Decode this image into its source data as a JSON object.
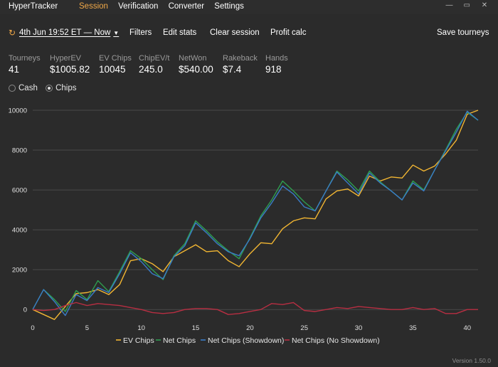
{
  "app": {
    "title": "HyperTracker"
  },
  "nav": {
    "items": [
      "Session",
      "Verification",
      "Converter",
      "Settings"
    ],
    "active": "Session"
  },
  "window_controls": {
    "minimize": "—",
    "maximize": "▭",
    "close": "✕"
  },
  "toolbar": {
    "session_range": "4th Jun 19:52 ET — Now",
    "filters": "Filters",
    "edit_stats": "Edit stats",
    "clear_session": "Clear session",
    "profit_calc": "Profit calc",
    "save_tourneys": "Save tourneys"
  },
  "stats": [
    {
      "label": "Tourneys",
      "value": "41"
    },
    {
      "label": "HyperEV",
      "value": "$1005.82"
    },
    {
      "label": "EV Chips",
      "value": "10045"
    },
    {
      "label": "ChipEV/t",
      "value": "245.0"
    },
    {
      "label": "NetWon",
      "value": "$540.00"
    },
    {
      "label": "Rakeback",
      "value": "$7.4"
    },
    {
      "label": "Hands",
      "value": "918"
    }
  ],
  "modes": {
    "options": [
      "Cash",
      "Chips"
    ],
    "selected": "Chips"
  },
  "chart_data": {
    "type": "line",
    "xlim": [
      0,
      41
    ],
    "ylim": [
      -600,
      10000
    ],
    "x_ticks": [
      0,
      5,
      10,
      15,
      20,
      25,
      30,
      35,
      40
    ],
    "y_ticks": [
      0,
      2000,
      4000,
      6000,
      8000,
      10000
    ],
    "grid": "horizontal",
    "legend_position": "bottom",
    "colors": {
      "background": "#2b2b2b",
      "grid": "#4a4a4a",
      "axis_text": "#e0e0e0"
    },
    "x": [
      0,
      1,
      2,
      3,
      4,
      5,
      6,
      7,
      8,
      9,
      10,
      11,
      12,
      13,
      14,
      15,
      16,
      17,
      18,
      19,
      20,
      21,
      22,
      23,
      24,
      25,
      26,
      27,
      28,
      29,
      30,
      31,
      32,
      33,
      34,
      35,
      36,
      37,
      38,
      39,
      40,
      41
    ],
    "series": [
      {
        "name": "EV Chips",
        "color": "#f2b632",
        "values": [
          0,
          -250,
          -500,
          150,
          800,
          850,
          1000,
          750,
          1250,
          2450,
          2550,
          2300,
          1900,
          2650,
          2950,
          3250,
          2900,
          2950,
          2450,
          2150,
          2800,
          3350,
          3300,
          4050,
          4450,
          4600,
          4550,
          5550,
          5950,
          6050,
          5700,
          6700,
          6450,
          6650,
          6600,
          7250,
          6950,
          7200,
          7800,
          8500,
          9800,
          10000
        ]
      },
      {
        "name": "Net Chips",
        "color": "#2e9e4f",
        "values": [
          0,
          1000,
          500,
          -100,
          950,
          500,
          1450,
          900,
          1900,
          2950,
          2550,
          2000,
          1500,
          2700,
          3300,
          4450,
          3950,
          3400,
          2950,
          2550,
          3600,
          4700,
          5500,
          6450,
          5950,
          5400,
          4950,
          5950,
          6950,
          6500,
          5950,
          6950,
          6400,
          5950,
          5500,
          6450,
          6000,
          7000,
          8000,
          9050,
          9900,
          9500
        ]
      },
      {
        "name": "Net Chips (Showdown)",
        "color": "#3a7cc8",
        "values": [
          0,
          1000,
          400,
          -300,
          750,
          450,
          1100,
          850,
          1800,
          2850,
          2400,
          1800,
          1550,
          2650,
          3200,
          4350,
          3850,
          3300,
          2900,
          2700,
          3550,
          4600,
          5350,
          6200,
          5800,
          5150,
          4950,
          5950,
          6900,
          6350,
          5800,
          6850,
          6350,
          5950,
          5500,
          6350,
          5950,
          7000,
          7950,
          8900,
          9950,
          9500
        ]
      },
      {
        "name": "Net Chips (No Showdown)",
        "color": "#b82e42",
        "values": [
          0,
          -50,
          0,
          200,
          350,
          200,
          300,
          250,
          200,
          100,
          0,
          -150,
          -200,
          -150,
          0,
          50,
          50,
          0,
          -250,
          -200,
          -100,
          0,
          300,
          250,
          350,
          -50,
          -100,
          0,
          100,
          50,
          150,
          100,
          50,
          0,
          0,
          100,
          0,
          50,
          -200,
          -200,
          0,
          0
        ]
      }
    ]
  },
  "footer": {
    "version": "Version 1.50.0"
  }
}
